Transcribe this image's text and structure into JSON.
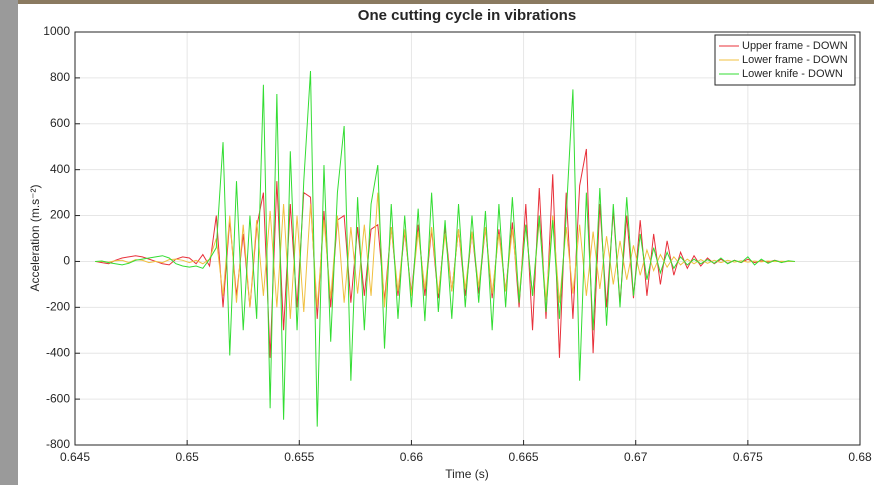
{
  "chart_data": {
    "type": "line",
    "title": "One cutting cycle in vibrations",
    "x_label": "Time (s)",
    "y_label": "Acceleration (m.s⁻²)",
    "x": [
      0.6459,
      0.6462,
      0.6465,
      0.6468,
      0.6471,
      0.6474,
      0.6477,
      0.648,
      0.6483,
      0.6486,
      0.6489,
      0.6492,
      0.6495,
      0.6498,
      0.6501,
      0.6504,
      0.6507,
      0.651,
      0.6513,
      0.6516,
      0.6519,
      0.6522,
      0.6525,
      0.6528,
      0.6531,
      0.6534,
      0.6537,
      0.654,
      0.6543,
      0.6546,
      0.6549,
      0.6552,
      0.6555,
      0.6558,
      0.6561,
      0.6564,
      0.6567,
      0.657,
      0.6573,
      0.6576,
      0.6579,
      0.6582,
      0.6585,
      0.6588,
      0.6591,
      0.6594,
      0.6597,
      0.66,
      0.6603,
      0.6606,
      0.6609,
      0.6612,
      0.6615,
      0.6618,
      0.6621,
      0.6624,
      0.6627,
      0.663,
      0.6633,
      0.6636,
      0.6639,
      0.6642,
      0.6645,
      0.6648,
      0.6651,
      0.6654,
      0.6657,
      0.666,
      0.6663,
      0.6666,
      0.6669,
      0.6672,
      0.6675,
      0.6678,
      0.6681,
      0.6684,
      0.6687,
      0.669,
      0.6693,
      0.6696,
      0.6699,
      0.6702,
      0.6705,
      0.6708,
      0.6711,
      0.6714,
      0.6717,
      0.672,
      0.6723,
      0.6726,
      0.6729,
      0.6732,
      0.6735,
      0.6738,
      0.6741,
      0.6744,
      0.6747,
      0.675,
      0.6753,
      0.6756,
      0.6759,
      0.6762,
      0.6765,
      0.6768,
      0.6771
    ],
    "series": [
      {
        "name": "Upper frame - DOWN",
        "color": "#e8303a",
        "values": [
          0,
          -5,
          -10,
          5,
          15,
          20,
          25,
          20,
          10,
          0,
          -10,
          -15,
          10,
          20,
          15,
          -10,
          30,
          -20,
          200,
          -200,
          180,
          -150,
          120,
          -200,
          150,
          300,
          -420,
          350,
          -300,
          250,
          -200,
          300,
          280,
          -250,
          220,
          -200,
          180,
          200,
          -180,
          150,
          -150,
          140,
          160,
          -170,
          150,
          -150,
          130,
          -140,
          160,
          -150,
          140,
          -160,
          150,
          -130,
          140,
          -150,
          130,
          -140,
          150,
          -160,
          140,
          -130,
          170,
          -200,
          250,
          -300,
          320,
          -250,
          380,
          -420,
          300,
          -250,
          330,
          490,
          -400,
          250,
          -200,
          220,
          -180,
          200,
          -160,
          180,
          -150,
          120,
          -100,
          90,
          -60,
          40,
          -30,
          25,
          -20,
          15,
          -10,
          10,
          -8,
          5,
          -5,
          10,
          -5,
          3,
          -3,
          5,
          -3,
          0,
          0
        ]
      },
      {
        "name": "Lower frame - DOWN",
        "color": "#f0c040",
        "values": [
          0,
          0,
          -3,
          3,
          5,
          -5,
          8,
          5,
          -5,
          0,
          -5,
          8,
          10,
          5,
          -5,
          5,
          -10,
          10,
          100,
          -150,
          200,
          -180,
          160,
          -200,
          180,
          -150,
          220,
          -200,
          250,
          -250,
          200,
          -220,
          250,
          -200,
          180,
          -160,
          200,
          -180,
          150,
          -140,
          160,
          -150,
          300,
          -200,
          150,
          -130,
          140,
          -150,
          130,
          -120,
          150,
          -140,
          120,
          -130,
          140,
          -120,
          130,
          -110,
          150,
          -140,
          120,
          -130,
          140,
          -150,
          160,
          -150,
          180,
          -170,
          200,
          -180,
          150,
          -140,
          160,
          -150,
          130,
          -120,
          110,
          -100,
          90,
          -80,
          70,
          -60,
          50,
          -40,
          30,
          -25,
          20,
          -15,
          10,
          -10,
          8,
          -8,
          5,
          -5,
          5,
          -3,
          3,
          -3,
          2,
          -2,
          2,
          -1,
          1,
          0,
          0
        ]
      },
      {
        "name": "Lower knife - DOWN",
        "color": "#33dd33",
        "values": [
          0,
          2,
          -5,
          -10,
          -15,
          -8,
          5,
          10,
          15,
          20,
          25,
          15,
          -10,
          -20,
          -25,
          -20,
          -30,
          10,
          60,
          520,
          -410,
          350,
          -300,
          200,
          -250,
          770,
          -640,
          730,
          -690,
          480,
          -300,
          350,
          830,
          -720,
          420,
          -350,
          300,
          590,
          -520,
          280,
          -300,
          250,
          420,
          -380,
          250,
          -250,
          200,
          -200,
          230,
          -260,
          300,
          -220,
          180,
          -250,
          250,
          -200,
          200,
          -180,
          220,
          -300,
          250,
          -200,
          280,
          -180,
          160,
          -150,
          200,
          -220,
          180,
          -250,
          200,
          750,
          -520,
          300,
          -300,
          320,
          -280,
          250,
          -200,
          280,
          -150,
          120,
          -80,
          60,
          -50,
          40,
          -30,
          20,
          -15,
          10,
          -10,
          8,
          -8,
          15,
          -10,
          5,
          -5,
          20,
          -15,
          10,
          -8,
          5,
          -5,
          3,
          0
        ]
      }
    ],
    "xlim": [
      0.645,
      0.68
    ],
    "xticks": [
      0.645,
      0.65,
      0.655,
      0.66,
      0.665,
      0.67,
      0.675,
      0.68
    ],
    "ylim": [
      -800,
      1000
    ],
    "yticks": [
      -800,
      -600,
      -400,
      -200,
      0,
      200,
      400,
      600,
      800,
      1000
    ],
    "grid": true,
    "legend": "top-right"
  }
}
